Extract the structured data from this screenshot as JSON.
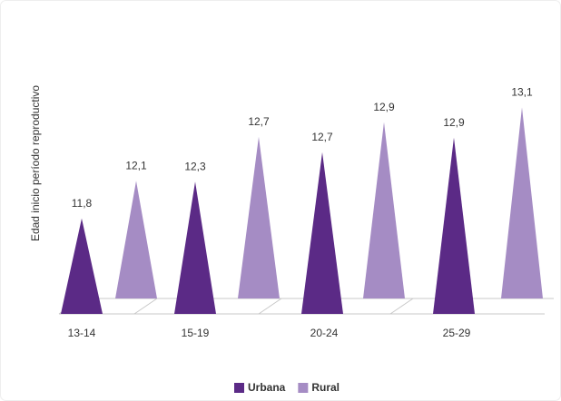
{
  "chart_data": {
    "type": "triangle-bar",
    "y_label": "Edad inicio período reproductivo",
    "categories": [
      "13-14",
      "15-19",
      "20-24",
      "25-29"
    ],
    "series": [
      {
        "name": "Urbana",
        "color": "#5b2a86",
        "values": [
          11.8,
          12.3,
          12.7,
          12.9
        ],
        "value_labels": [
          "11,8",
          "12,3",
          "12,7",
          "12,9"
        ]
      },
      {
        "name": "Rural",
        "color": "#a58cc4",
        "values": [
          12.1,
          12.7,
          12.9,
          13.1
        ],
        "value_labels": [
          "12,1",
          "12,7",
          "12,9",
          "13,1"
        ]
      }
    ],
    "ylim": [
      10.5,
      13.5
    ]
  }
}
